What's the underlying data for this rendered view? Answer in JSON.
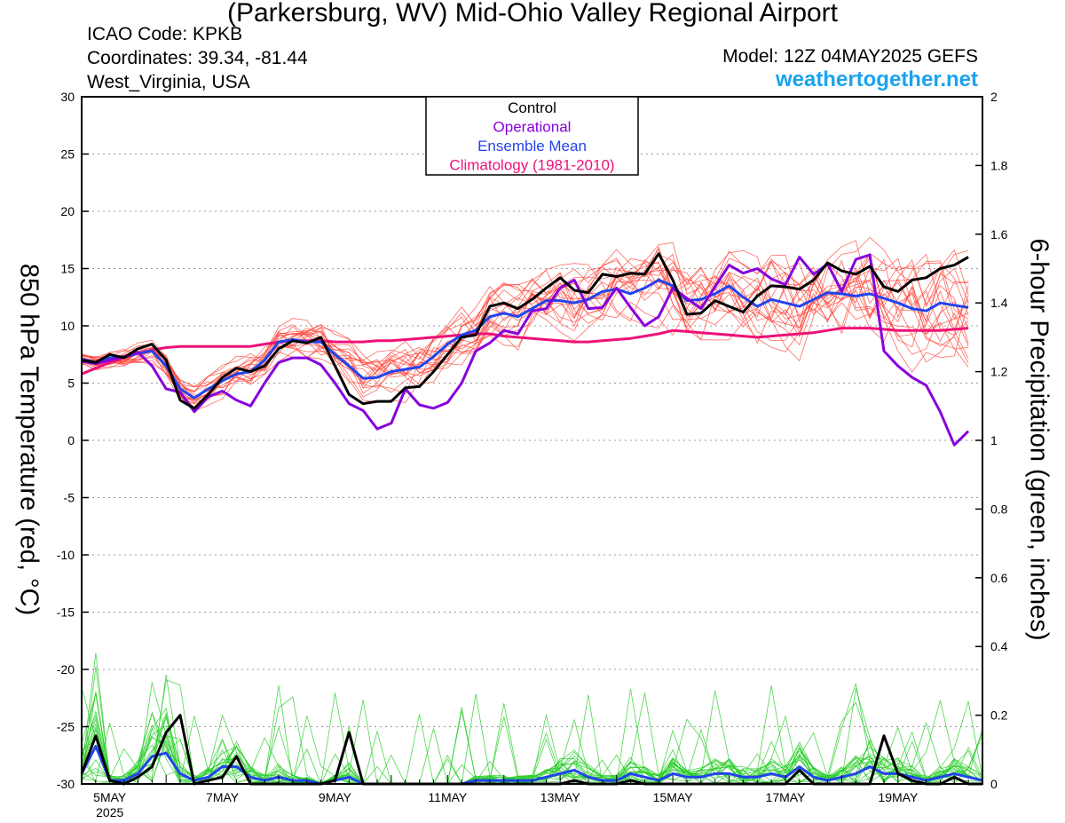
{
  "header": {
    "title": "(Parkersburg, WV) Mid-Ohio Valley Regional Airport",
    "icao": "ICAO Code: KPKB",
    "coordinates": "Coordinates: 39.34, -81.44",
    "region": "West_Virginia, USA",
    "model": "Model: 12Z 04MAY2025 GEFS",
    "site": "weathertogether.net"
  },
  "colors": {
    "control": "#000000",
    "operational": "#8800dd",
    "ensemble_mean": "#2244ee",
    "climatology": "#ee1177",
    "members_temp": "#ff3b2f",
    "members_precip": "#22cc22",
    "site": "#1aa3ee"
  },
  "chart_data": {
    "type": "line",
    "xlabel": "",
    "ylabel": "850 hPa Temperature (red, °C)",
    "y2label": "6-hour Precipitation (green, inches)",
    "ylim": [
      -30,
      30
    ],
    "y2lim": [
      0,
      2
    ],
    "x_range_days": [
      "2025-05-04T12Z",
      "2025-05-20T12Z"
    ],
    "x_ticks": [
      "5MAY",
      "7MAY",
      "9MAY",
      "11MAY",
      "13MAY",
      "15MAY",
      "17MAY",
      "19MAY"
    ],
    "x_tick_dates": [
      "2025-05-05",
      "2025-05-07",
      "2025-05-09",
      "2025-05-11",
      "2025-05-13",
      "2025-05-15",
      "2025-05-17",
      "2025-05-19"
    ],
    "x_year_label": "2025",
    "y_ticks": [
      30,
      25,
      20,
      15,
      10,
      5,
      0,
      -5,
      -10,
      -15,
      -20,
      -25,
      -30
    ],
    "y2_ticks": [
      2,
      1.8,
      1.6,
      1.4,
      1.2,
      1,
      0.8,
      0.6,
      0.4,
      0.2,
      0
    ],
    "grid": true,
    "legend": {
      "placement": "top-center",
      "entries": [
        "Control",
        "Operational",
        "Ensemble Mean",
        "Climatology (1981-2010)"
      ]
    },
    "time_step_hours": 6,
    "temperature_series": [
      {
        "name": "Control",
        "values": [
          7,
          6.8,
          7.5,
          7.2,
          8,
          8.4,
          7,
          3.5,
          2.8,
          4,
          5.5,
          6.3,
          6,
          6.5,
          8,
          8.7,
          8.5,
          9,
          6.5,
          4,
          3.2,
          3.4,
          3.4,
          4.6,
          4.7,
          6,
          7.5,
          9,
          9.2,
          11.7,
          12,
          11.5,
          12.3,
          13.3,
          14.2,
          13.1,
          12.9,
          14.5,
          14.3,
          14.6,
          14.5,
          16.3,
          14,
          11,
          11.1,
          12.2,
          11.7,
          11.2,
          12.6,
          13.5,
          13.4,
          13.2,
          14,
          15.5,
          14.8,
          14.5,
          15.2,
          13.4,
          13,
          14,
          14.2,
          15,
          15.3,
          16
        ]
      },
      {
        "name": "Operational",
        "values": [
          6.9,
          6.7,
          7,
          7.3,
          7.7,
          6.5,
          4.5,
          4.2,
          2.5,
          3.8,
          4.3,
          3.5,
          3,
          5,
          6.8,
          7.2,
          7.2,
          6.6,
          5,
          3.2,
          2.6,
          1,
          1.5,
          4.5,
          3.1,
          2.8,
          3.3,
          5,
          7.8,
          8.5,
          9.6,
          9.3,
          11.3,
          11.5,
          13.3,
          14,
          11.5,
          11.6,
          13.3,
          11.6,
          10,
          10.8,
          13.3,
          12.4,
          11.5,
          13.4,
          15.3,
          14.6,
          15,
          14.1,
          13.6,
          16,
          14.5,
          15.4,
          13,
          15.8,
          16.2,
          7.8,
          6.5,
          5.5,
          4.8,
          2.5,
          -0.4,
          0.8
        ]
      },
      {
        "name": "Ensemble Mean",
        "values": [
          7.1,
          6.8,
          7.2,
          7.3,
          7.6,
          7.8,
          6.5,
          4.5,
          3.7,
          4.5,
          5.2,
          5.8,
          6,
          7,
          8.6,
          8.8,
          8.6,
          8.6,
          7.5,
          6.5,
          5.4,
          5.5,
          6,
          6.2,
          6.4,
          7.3,
          8.4,
          9.2,
          9.6,
          10.8,
          11.1,
          10.8,
          11.5,
          12.2,
          12.2,
          12,
          12.3,
          13,
          13.2,
          12.8,
          13.3,
          14,
          13.5,
          12.2,
          12.3,
          12.8,
          13.5,
          12.5,
          11.7,
          12.3,
          12,
          11.7,
          12.3,
          12.9,
          12.8,
          12.6,
          12.8,
          12.4,
          12,
          11.5,
          11.3,
          12,
          11.8,
          11.6
        ]
      },
      {
        "name": "Climatology (1981-2010)",
        "values": [
          5.8,
          6.3,
          6.8,
          7.2,
          7.6,
          7.9,
          8.1,
          8.2,
          8.2,
          8.2,
          8.2,
          8.2,
          8.2,
          8.4,
          8.6,
          8.7,
          8.7,
          8.7,
          8.6,
          8.6,
          8.6,
          8.7,
          8.7,
          8.8,
          8.9,
          9,
          9.1,
          9.2,
          9.3,
          9.3,
          9.1,
          9,
          8.9,
          8.8,
          8.7,
          8.6,
          8.6,
          8.7,
          8.8,
          8.9,
          9.1,
          9.3,
          9.6,
          9.5,
          9.4,
          9.3,
          9.2,
          9.1,
          9,
          9.1,
          9.2,
          9.3,
          9.4,
          9.6,
          9.8,
          9.8,
          9.8,
          9.7,
          9.6,
          9.6,
          9.6,
          9.6,
          9.7,
          9.8
        ]
      }
    ],
    "precip_series": [
      {
        "name": "Control",
        "values": [
          0.03,
          0.14,
          0.01,
          0,
          0.02,
          0.05,
          0.15,
          0.2,
          0,
          0.01,
          0.02,
          0.08,
          0,
          0,
          0,
          0,
          0,
          0,
          0.01,
          0.15,
          0,
          0,
          0,
          0,
          0,
          0,
          0,
          0,
          0,
          0,
          0,
          0,
          0,
          0,
          0,
          0.01,
          0,
          0,
          0,
          0.01,
          0,
          0,
          0,
          0,
          0,
          0,
          0,
          0,
          0,
          0,
          0,
          0.04,
          0,
          0,
          0,
          0,
          0,
          0.14,
          0.03,
          0.01,
          0,
          0,
          0.02,
          0,
          0
        ]
      },
      {
        "name": "Operational",
        "values": [
          0.02,
          0.1,
          0,
          0,
          0.01,
          0.06,
          0.12,
          0.05,
          0,
          0.01,
          0.03,
          0.05,
          0.01,
          0,
          0,
          0.01,
          0,
          0,
          0.01,
          0.02,
          0,
          0,
          0,
          0,
          0,
          0,
          0,
          0,
          0,
          0,
          0.01,
          0.01,
          0,
          0.01,
          0.02,
          0.03,
          0.01,
          0,
          0.01,
          0.02,
          0.01,
          0,
          0.02,
          0.01,
          0,
          0.01,
          0.02,
          0.01,
          0.01,
          0.02,
          0.01,
          0.03,
          0.01,
          0,
          0.01,
          0.01,
          0.03,
          0.02,
          0.02,
          0.01,
          0.01,
          0.02,
          0.03,
          0.02,
          0.01
        ]
      },
      {
        "name": "Ensemble Mean",
        "values": [
          0.03,
          0.11,
          0.01,
          0.01,
          0.03,
          0.08,
          0.09,
          0.03,
          0.01,
          0.02,
          0.05,
          0.05,
          0.02,
          0.01,
          0.02,
          0.01,
          0.01,
          0,
          0.01,
          0.02,
          0,
          0,
          0,
          0,
          0,
          0,
          0,
          0,
          0.01,
          0.01,
          0.01,
          0.01,
          0.01,
          0.02,
          0.03,
          0.04,
          0.02,
          0.01,
          0.01,
          0.03,
          0.02,
          0.01,
          0.03,
          0.02,
          0.02,
          0.03,
          0.03,
          0.02,
          0.02,
          0.03,
          0.02,
          0.05,
          0.02,
          0.01,
          0.02,
          0.03,
          0.05,
          0.03,
          0.03,
          0.02,
          0.01,
          0.02,
          0.03,
          0.02,
          0.01
        ]
      }
    ]
  }
}
